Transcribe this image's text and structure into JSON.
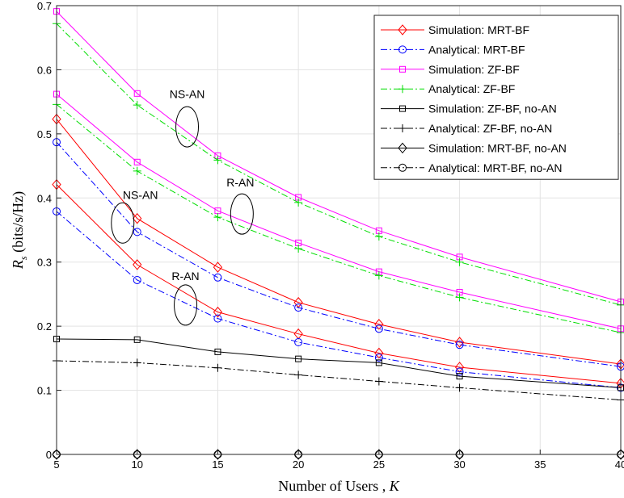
{
  "chart_data": {
    "type": "line",
    "xlabel_main": "Number of Users , ",
    "xlabel_var": "K",
    "ylabel_sym": "R",
    "ylabel_sub": "s",
    "ylabel_unit": " (bits/s/Hz)",
    "xlim": [
      5,
      40
    ],
    "ylim": [
      0,
      0.7
    ],
    "xticks": [
      5,
      10,
      15,
      20,
      25,
      30,
      35,
      40
    ],
    "yticks": [
      0,
      0.1,
      0.2,
      0.3,
      0.4,
      0.5,
      0.6,
      0.7
    ],
    "x": [
      5,
      10,
      15,
      20,
      25,
      30,
      40
    ],
    "grid": true,
    "legend_position": "top-right",
    "legend": [
      {
        "label": "Simulation: MRT-BF",
        "color": "#ff0000",
        "dash": "solid",
        "marker": "diamond"
      },
      {
        "label": "Analytical: MRT-BF",
        "color": "#0000ff",
        "dash": "dashdot",
        "marker": "circle"
      },
      {
        "label": "Simulation: ZF-BF",
        "color": "#ff00ff",
        "dash": "solid",
        "marker": "square"
      },
      {
        "label": "Analytical: ZF-BF",
        "color": "#00dd00",
        "dash": "dashdot",
        "marker": "plus"
      },
      {
        "label": "Simulation: ZF-BF, no-AN",
        "color": "#000000",
        "dash": "solid",
        "marker": "square"
      },
      {
        "label": "Analytical: ZF-BF, no-AN",
        "color": "#000000",
        "dash": "dashdot",
        "marker": "plus"
      },
      {
        "label": "Simulation: MRT-BF, no-AN",
        "color": "#000000",
        "dash": "solid",
        "marker": "diamond"
      },
      {
        "label": "Analytical: MRT-BF, no-AN",
        "color": "#000000",
        "dash": "dashdot",
        "marker": "circle"
      }
    ],
    "series": [
      {
        "name": "Simulation: MRT-BF",
        "group": "NS-AN",
        "style": 0,
        "values": [
          0.523,
          0.368,
          0.292,
          0.237,
          0.203,
          0.175,
          0.141
        ]
      },
      {
        "name": "Simulation: MRT-BF",
        "group": "R-AN",
        "style": 0,
        "values": [
          0.421,
          0.296,
          0.222,
          0.188,
          0.158,
          0.136,
          0.111
        ]
      },
      {
        "name": "Analytical: MRT-BF",
        "group": "NS-AN",
        "style": 1,
        "values": [
          0.487,
          0.347,
          0.276,
          0.229,
          0.196,
          0.171,
          0.137
        ]
      },
      {
        "name": "Analytical: MRT-BF",
        "group": "R-AN",
        "style": 1,
        "values": [
          0.379,
          0.272,
          0.212,
          0.175,
          0.151,
          0.129,
          0.104
        ]
      },
      {
        "name": "Simulation: ZF-BF",
        "group": "NS-AN",
        "style": 2,
        "values": [
          0.691,
          0.563,
          0.466,
          0.401,
          0.349,
          0.308,
          0.238
        ]
      },
      {
        "name": "Simulation: ZF-BF",
        "group": "R-AN",
        "style": 2,
        "values": [
          0.562,
          0.456,
          0.38,
          0.33,
          0.285,
          0.253,
          0.196
        ]
      },
      {
        "name": "Analytical: ZF-BF",
        "group": "NS-AN",
        "style": 3,
        "values": [
          0.672,
          0.545,
          0.459,
          0.393,
          0.34,
          0.3,
          0.233
        ]
      },
      {
        "name": "Analytical: ZF-BF",
        "group": "R-AN",
        "style": 3,
        "values": [
          0.546,
          0.442,
          0.37,
          0.321,
          0.279,
          0.245,
          0.19
        ]
      },
      {
        "name": "Simulation: ZF-BF, no-AN",
        "style": 4,
        "values": [
          0.18,
          0.179,
          0.16,
          0.149,
          0.143,
          0.122,
          0.104
        ]
      },
      {
        "name": "Analytical: ZF-BF, no-AN",
        "style": 5,
        "values": [
          0.146,
          0.143,
          0.135,
          0.124,
          0.114,
          0.104,
          0.085
        ]
      },
      {
        "name": "Simulation: MRT-BF, no-AN",
        "style": 6,
        "values": [
          0,
          0,
          0,
          0,
          0,
          0,
          0
        ]
      },
      {
        "name": "Analytical: MRT-BF, no-AN",
        "style": 7,
        "values": [
          0,
          0,
          0,
          0,
          0,
          0,
          0
        ]
      }
    ],
    "annotations": [
      {
        "text": "NS-AN",
        "label_at": [
          13.1,
          0.562
        ],
        "ellipse_at": [
          13.1,
          0.511
        ]
      },
      {
        "text": "R-AN",
        "label_at": [
          16.4,
          0.424
        ],
        "ellipse_at": [
          16.5,
          0.375
        ]
      },
      {
        "text": "NS-AN",
        "label_at": [
          10.2,
          0.405
        ],
        "ellipse_at": [
          9.1,
          0.361
        ]
      },
      {
        "text": "R-AN",
        "label_at": [
          13.0,
          0.278
        ],
        "ellipse_at": [
          13.0,
          0.233
        ]
      }
    ]
  }
}
